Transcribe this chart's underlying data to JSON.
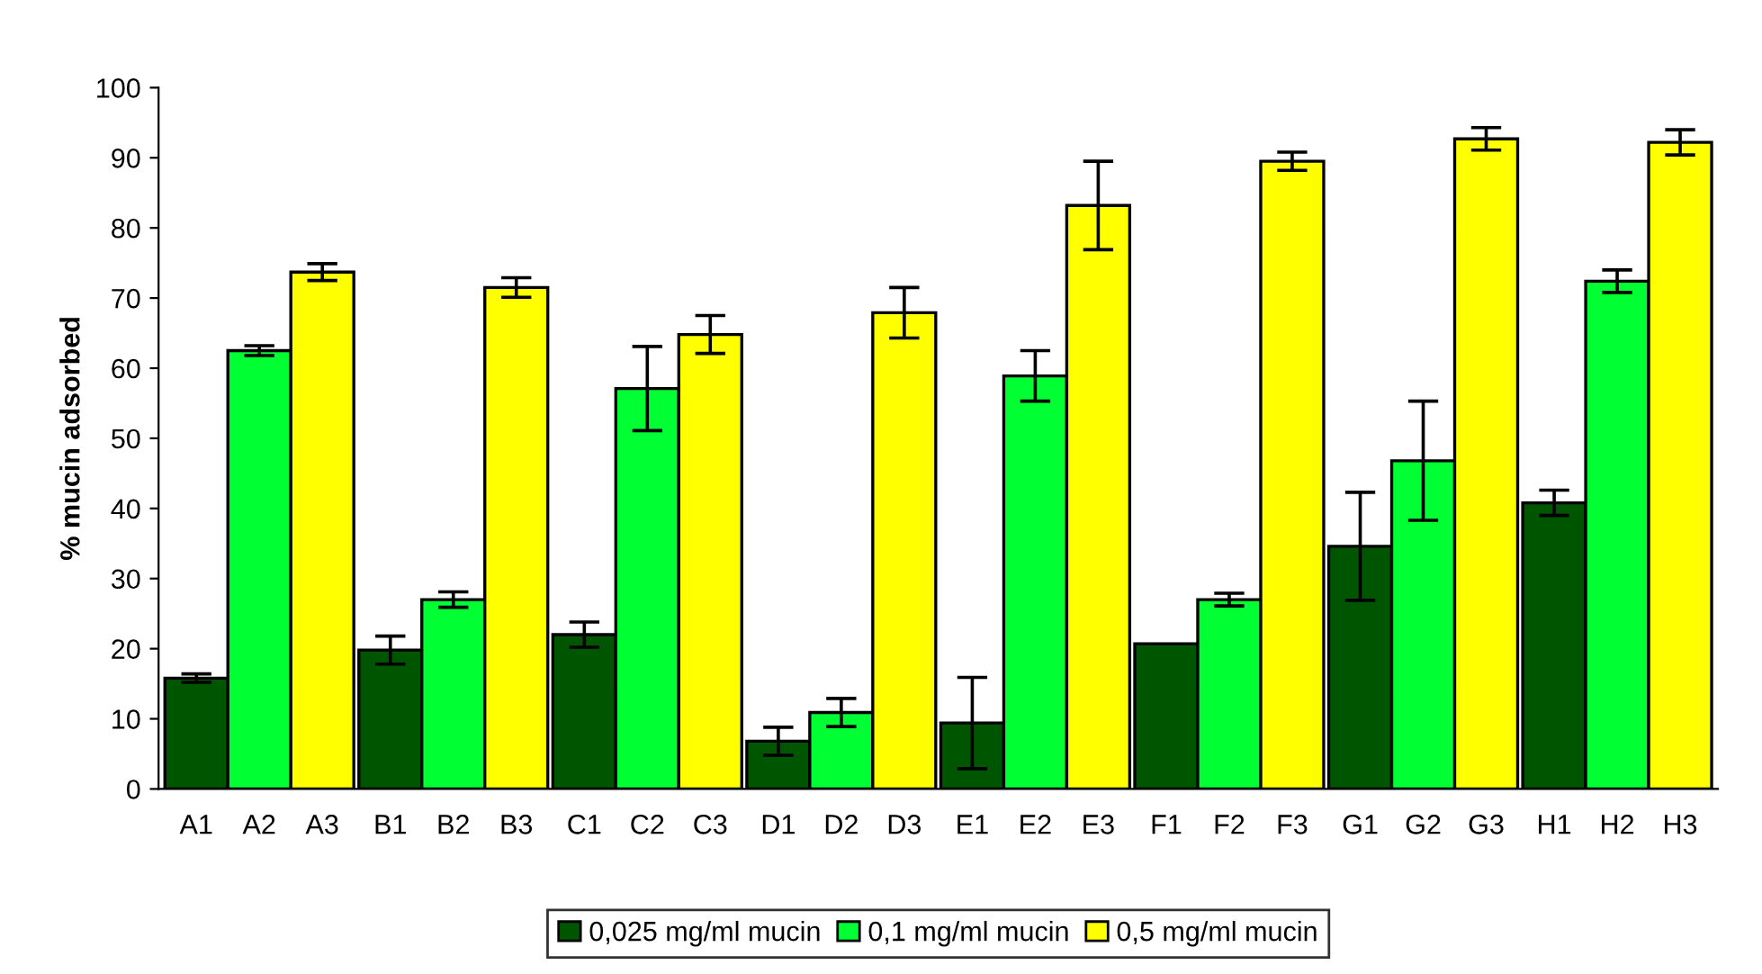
{
  "chart_data": {
    "type": "bar",
    "ylabel": "% mucin adsorbed",
    "categories": [
      "A1",
      "A2",
      "A3",
      "B1",
      "B2",
      "B3",
      "C1",
      "C2",
      "C3",
      "D1",
      "D2",
      "D3",
      "E1",
      "E2",
      "E3",
      "F1",
      "F2",
      "F3",
      "G1",
      "G2",
      "G3",
      "H1",
      "H2",
      "H3"
    ],
    "series": [
      {
        "name": "0,025 mg/ml mucin",
        "color": "#005500",
        "values": [
          15.8,
          null,
          null,
          19.8,
          null,
          null,
          22.0,
          null,
          null,
          6.8,
          null,
          null,
          9.4,
          null,
          null,
          20.7,
          null,
          null,
          34.6,
          null,
          null,
          40.8,
          null,
          null
        ],
        "errors": [
          0.6,
          null,
          null,
          2.0,
          null,
          null,
          1.8,
          null,
          null,
          2.0,
          null,
          null,
          6.5,
          null,
          null,
          null,
          null,
          null,
          7.7,
          null,
          null,
          1.8,
          null,
          null
        ]
      },
      {
        "name": "0,1 mg/ml mucin",
        "color": "#00ff33",
        "values": [
          null,
          62.5,
          null,
          null,
          27.0,
          null,
          null,
          57.1,
          null,
          null,
          10.9,
          null,
          null,
          58.9,
          null,
          null,
          27.0,
          null,
          null,
          46.8,
          null,
          null,
          72.4,
          null
        ],
        "errors": [
          null,
          0.7,
          null,
          null,
          1.1,
          null,
          null,
          6.0,
          null,
          null,
          2.0,
          null,
          null,
          3.6,
          null,
          null,
          0.9,
          null,
          null,
          8.5,
          null,
          null,
          1.6,
          null
        ]
      },
      {
        "name": "0,5 mg/ml mucin",
        "color": "#ffff00",
        "values": [
          null,
          null,
          73.7,
          null,
          null,
          71.5,
          null,
          null,
          64.8,
          null,
          null,
          67.9,
          null,
          null,
          83.2,
          null,
          null,
          89.5,
          null,
          null,
          92.7,
          null,
          null,
          92.2
        ],
        "errors": [
          null,
          null,
          1.2,
          null,
          null,
          1.4,
          null,
          null,
          2.7,
          null,
          null,
          3.6,
          null,
          null,
          6.3,
          null,
          null,
          1.3,
          null,
          null,
          1.6,
          null,
          null,
          1.8
        ]
      }
    ],
    "ylim": [
      0,
      100
    ],
    "yticks": [
      0,
      10,
      20,
      30,
      40,
      50,
      60,
      70,
      80,
      90,
      100
    ],
    "grid": false,
    "legend": "bottom"
  }
}
